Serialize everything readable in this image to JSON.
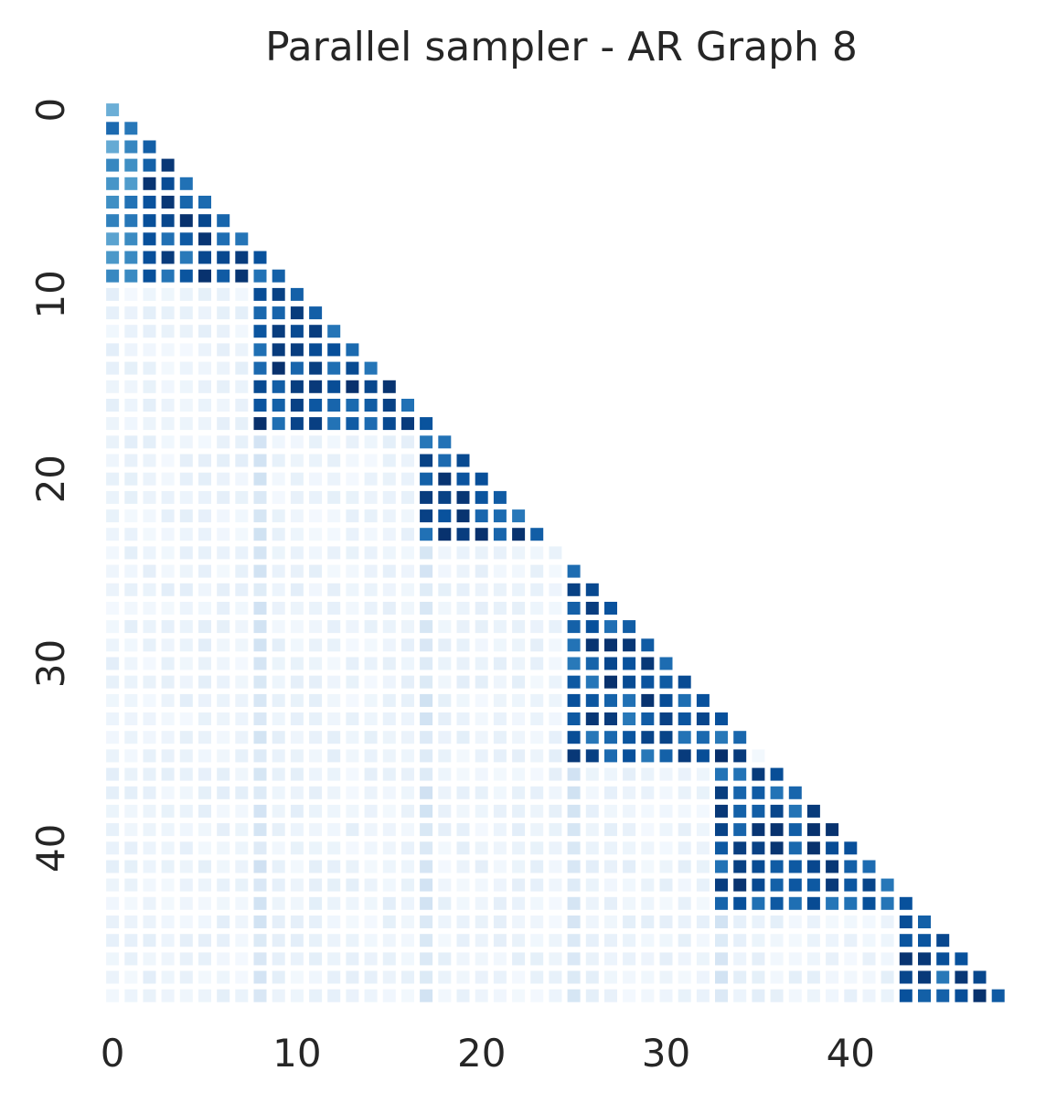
{
  "chart_data": {
    "type": "heatmap",
    "title": "Parallel sampler - AR Graph 8",
    "xlabel": "",
    "ylabel": "",
    "size": 49,
    "mask": "lower-triangle-including-diagonal",
    "colormap": "Blues",
    "value_range": [
      0,
      1
    ],
    "x_ticks": [
      0,
      10,
      20,
      30,
      40
    ],
    "y_ticks": [
      0,
      10,
      20,
      30,
      40
    ],
    "blocks": [
      {
        "rows": [
          0,
          9
        ],
        "cols": [
          0,
          9
        ]
      },
      {
        "rows": [
          10,
          17
        ],
        "cols": [
          8,
          17
        ]
      },
      {
        "rows": [
          18,
          23
        ],
        "cols": [
          17,
          23
        ]
      },
      {
        "rows": [
          25,
          35
        ],
        "cols": [
          25,
          34
        ]
      },
      {
        "rows": [
          36,
          43
        ],
        "cols": [
          33,
          43
        ]
      },
      {
        "rows": [
          44,
          48
        ],
        "cols": [
          43,
          48
        ]
      }
    ]
  }
}
